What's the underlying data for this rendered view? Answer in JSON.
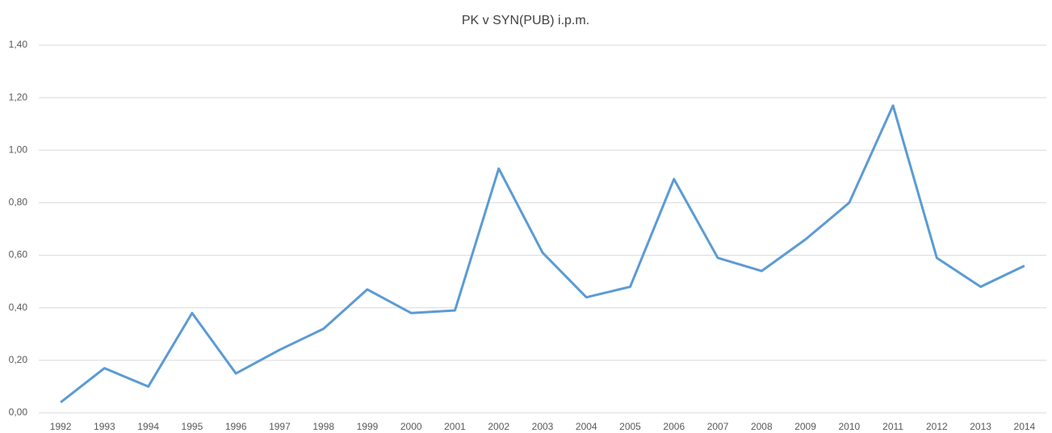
{
  "chart_data": {
    "type": "line",
    "title": "PK v SYN(PUB) i.p.m.",
    "categories": [
      "1992",
      "1993",
      "1994",
      "1995",
      "1996",
      "1997",
      "1998",
      "1999",
      "2000",
      "2001",
      "2002",
      "2003",
      "2004",
      "2005",
      "2006",
      "2007",
      "2008",
      "2009",
      "2010",
      "2011",
      "2012",
      "2013",
      "2014"
    ],
    "series": [
      {
        "name": "PK v SYN(PUB) i.p.m.",
        "color": "#5b9bd5",
        "values": [
          0.04,
          0.17,
          0.1,
          0.38,
          0.15,
          0.24,
          0.32,
          0.47,
          0.38,
          0.39,
          0.93,
          0.61,
          0.44,
          0.48,
          0.89,
          0.59,
          0.54,
          0.66,
          0.8,
          1.17,
          0.59,
          0.48,
          0.56
        ]
      }
    ],
    "ylim": [
      0,
      1.4
    ],
    "yticks": [
      {
        "value": 0,
        "label": "0,00"
      },
      {
        "value": 0.2,
        "label": "0,20"
      },
      {
        "value": 0.4,
        "label": "0,40"
      },
      {
        "value": 0.6,
        "label": "0,60"
      },
      {
        "value": 0.8,
        "label": "0,80"
      },
      {
        "value": 1.0,
        "label": "1,00"
      },
      {
        "value": 1.2,
        "label": "1,20"
      },
      {
        "value": 1.4,
        "label": "1,40"
      }
    ],
    "grid": true
  }
}
